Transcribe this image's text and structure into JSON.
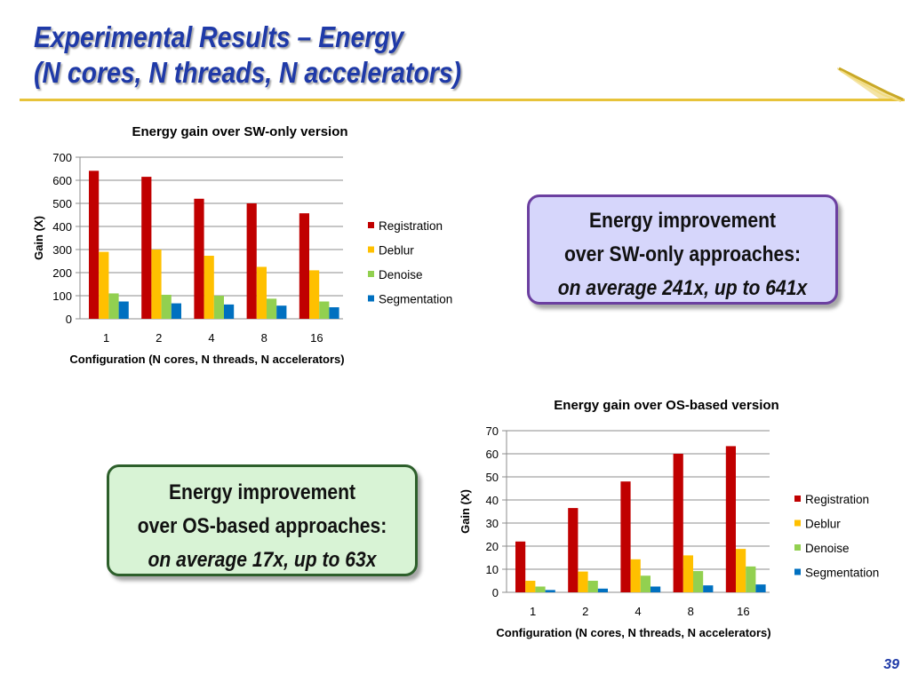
{
  "title": {
    "line1": "Experimental Results – Energy",
    "line2": "(N cores, N threads, N accelerators)"
  },
  "callouts": {
    "sw": {
      "line1": "Energy improvement",
      "line2": "over SW-only approaches:",
      "line3": "on average 241x, up to 641x"
    },
    "os": {
      "line1": "Energy improvement",
      "line2": "over OS-based approaches:",
      "line3": "on average 17x, up to 63x"
    }
  },
  "page_number": "39",
  "colors": {
    "title": "#1f3aa8",
    "rule": "#e7c33a",
    "Registration": "#c00000",
    "Deblur": "#ffc000",
    "Denoise": "#92d050",
    "Segmentation": "#0070c0"
  },
  "chart_data": [
    {
      "type": "bar",
      "title": "Energy gain over SW-only version",
      "xlabel": "Configuration (N cores, N threads, N accelerators)",
      "ylabel": "Gain (X)",
      "categories": [
        "1",
        "2",
        "4",
        "8",
        "16"
      ],
      "ylim": [
        0,
        700
      ],
      "yticks": [
        0,
        100,
        200,
        300,
        400,
        500,
        600,
        700
      ],
      "grid": true,
      "legend": "right",
      "series": [
        {
          "name": "Registration",
          "values": [
            641,
            615,
            520,
            500,
            457
          ]
        },
        {
          "name": "Deblur",
          "values": [
            290,
            300,
            273,
            225,
            210
          ]
        },
        {
          "name": "Denoise",
          "values": [
            110,
            104,
            100,
            87,
            75
          ]
        },
        {
          "name": "Segmentation",
          "values": [
            75,
            67,
            62,
            57,
            50
          ]
        }
      ]
    },
    {
      "type": "bar",
      "title": "Energy gain over OS-based version",
      "xlabel": "Configuration (N cores, N threads, N accelerators)",
      "ylabel": "Gain (X)",
      "categories": [
        "1",
        "2",
        "4",
        "8",
        "16"
      ],
      "ylim": [
        0,
        70
      ],
      "yticks": [
        0,
        10,
        20,
        30,
        40,
        50,
        60,
        70
      ],
      "grid": true,
      "legend": "right",
      "series": [
        {
          "name": "Registration",
          "values": [
            22,
            36.5,
            48,
            60,
            63.3
          ]
        },
        {
          "name": "Deblur",
          "values": [
            5,
            9,
            14.3,
            16,
            18.8
          ]
        },
        {
          "name": "Denoise",
          "values": [
            2.5,
            5,
            7.2,
            9.2,
            11.2
          ]
        },
        {
          "name": "Segmentation",
          "values": [
            1,
            1.6,
            2.5,
            3,
            3.4
          ]
        }
      ]
    }
  ]
}
